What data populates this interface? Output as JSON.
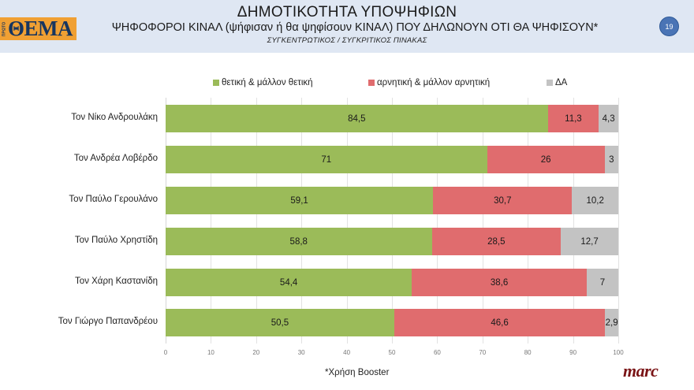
{
  "header": {
    "logo_small": "ΠΡΩΤΟ",
    "logo_main": "ΘΕΜΑ",
    "title": "ΔΗΜΟΤΙΚΟΤΗΤΑ ΥΠΟΨΗΦΙΩΝ",
    "subtitle": "ΨΗΦΟΦΟΡΟΙ ΚΙΝΑΛ (ψήφισαν ή θα ψηφίσουν ΚΙΝΑΛ) ΠΟΥ ΔΗΛΩΝΟΥΝ ΟΤΙ ΘΑ ΨΗΦΙΣΟΥΝ*",
    "sub_subtitle": "ΣΥΓΚΕΝΤΡΩΤΙΚΟΣ / ΣΥΓΚΡΙΤΙΚΟΣ ΠΙΝΑΚΑΣ",
    "page_number": "19"
  },
  "colors": {
    "positive": "#9bbb59",
    "negative": "#e06c6e",
    "dont_know": "#c3c3c3",
    "logo_bg": "#f0a033",
    "logo_text": "#17355f",
    "header_bg": "#dfe7f3",
    "badge": "#4a74b5",
    "brand": "#7a1416"
  },
  "legend": [
    {
      "label": "θετική & μάλλον θετική",
      "color": "#9bbb59"
    },
    {
      "label": "αρνητική & μάλλον αρνητική",
      "color": "#e06c6e"
    },
    {
      "label": "ΔΑ",
      "color": "#c3c3c3"
    }
  ],
  "footer": {
    "note": "*Χρήση Booster",
    "brand": "marc"
  },
  "chart_data": {
    "type": "bar",
    "orientation": "horizontal",
    "stacked": true,
    "title": "ΔΗΜΟΤΙΚΟΤΗΤΑ ΥΠΟΨΗΦΙΩΝ",
    "subtitle": "ΨΗΦΟΦΟΡΟΙ ΚΙΝΑΛ (ψήφισαν ή θα ψηφίσουν ΚΙΝΑΛ) ΠΟΥ ΔΗΛΩΝΟΥΝ ΟΤΙ ΘΑ ΨΗΦΙΣΟΥΝ*",
    "categories": [
      "Τον Νίκο Ανδρουλάκη",
      "Τον Ανδρέα Λοβέρδο",
      "Τον Παύλο Γερουλάνο",
      "Τον Παύλο Χρηστίδη",
      "Τον Χάρη Καστανίδη",
      "Τον Γιώργο Παπανδρέου"
    ],
    "series": [
      {
        "name": "θετική & μάλλον θετική",
        "color": "#9bbb59",
        "values": [
          84.5,
          71,
          59.1,
          58.8,
          54.4,
          50.5
        ],
        "labels": [
          "84,5",
          "71",
          "59,1",
          "58,8",
          "54,4",
          "50,5"
        ]
      },
      {
        "name": "αρνητική & μάλλον αρνητική",
        "color": "#e06c6e",
        "values": [
          11.3,
          26,
          30.7,
          28.5,
          38.6,
          46.6
        ],
        "labels": [
          "11,3",
          "26",
          "30,7",
          "28,5",
          "38,6",
          "46,6"
        ]
      },
      {
        "name": "ΔΑ",
        "color": "#c3c3c3",
        "values": [
          4.3,
          3,
          10.2,
          12.7,
          7,
          2.9
        ],
        "labels": [
          "4,3",
          "3",
          "10,2",
          "12,7",
          "7",
          "2,9"
        ]
      }
    ],
    "xlabel": "",
    "ylabel": "",
    "xlim": [
      0,
      100
    ],
    "xticks": [
      "0",
      "10",
      "20",
      "30",
      "40",
      "50",
      "60",
      "70",
      "80",
      "90",
      "100"
    ],
    "grid": true,
    "legend_position": "top"
  }
}
